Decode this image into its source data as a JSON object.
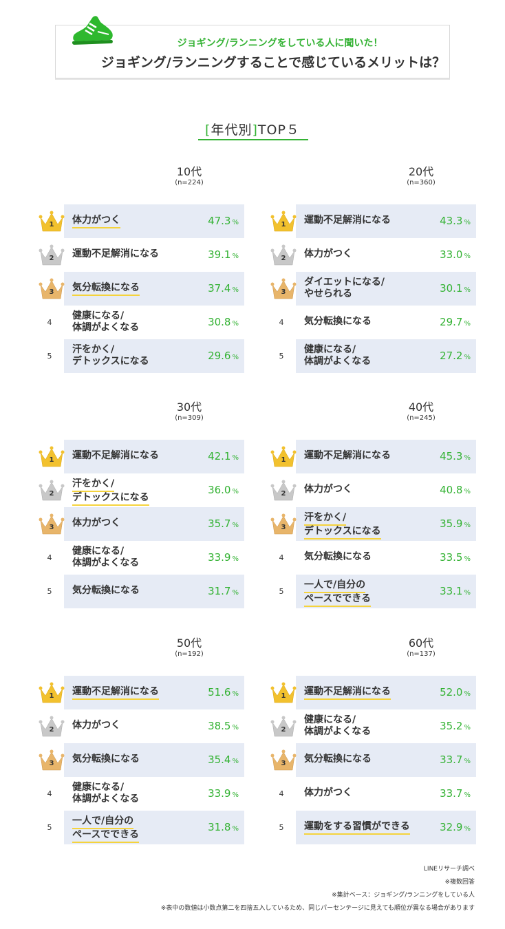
{
  "header": {
    "subtitle": "ジョギング/ランニングをしている人に聞いた！",
    "title": "ジョギング/ランニングすることで感じているメリットは？"
  },
  "section": {
    "bracket_open": "[",
    "title_main": "年代別",
    "bracket_close": "]",
    "title_suffix": "TOP５"
  },
  "chart_data": [
    {
      "type": "table",
      "title": "10代",
      "n": "(n=224)",
      "unit": "%",
      "ranks": [
        {
          "rank": 1,
          "label_lines": [
            "体力がつく"
          ],
          "value": "47.3",
          "underline": true
        },
        {
          "rank": 2,
          "label_lines": [
            "運動不足解消になる"
          ],
          "value": "39.1",
          "underline": false
        },
        {
          "rank": 3,
          "label_lines": [
            "気分転換になる"
          ],
          "value": "37.4",
          "underline": true
        },
        {
          "rank": 4,
          "label_lines": [
            "健康になる/",
            "体調がよくなる"
          ],
          "value": "30.8",
          "underline": false
        },
        {
          "rank": 5,
          "label_lines": [
            "汗をかく/",
            "デトックスになる"
          ],
          "value": "29.6",
          "underline": false
        }
      ]
    },
    {
      "type": "table",
      "title": "20代",
      "n": "(n=360)",
      "unit": "%",
      "ranks": [
        {
          "rank": 1,
          "label_lines": [
            "運動不足解消になる"
          ],
          "value": "43.3",
          "underline": false
        },
        {
          "rank": 2,
          "label_lines": [
            "体力がつく"
          ],
          "value": "33.0",
          "underline": false
        },
        {
          "rank": 3,
          "label_lines": [
            "ダイエットになる/",
            "やせられる"
          ],
          "value": "30.1",
          "underline": false
        },
        {
          "rank": 4,
          "label_lines": [
            "気分転換になる"
          ],
          "value": "29.7",
          "underline": false
        },
        {
          "rank": 5,
          "label_lines": [
            "健康になる/",
            "体調がよくなる"
          ],
          "value": "27.2",
          "underline": false
        }
      ]
    },
    {
      "type": "table",
      "title": "30代",
      "n": "(n=309)",
      "unit": "%",
      "ranks": [
        {
          "rank": 1,
          "label_lines": [
            "運動不足解消になる"
          ],
          "value": "42.1",
          "underline": false
        },
        {
          "rank": 2,
          "label_lines": [
            "汗をかく/",
            "デトックスになる"
          ],
          "value": "36.0",
          "underline": true
        },
        {
          "rank": 3,
          "label_lines": [
            "体力がつく"
          ],
          "value": "35.7",
          "underline": false
        },
        {
          "rank": 4,
          "label_lines": [
            "健康になる/",
            "体調がよくなる"
          ],
          "value": "33.9",
          "underline": false
        },
        {
          "rank": 5,
          "label_lines": [
            "気分転換になる"
          ],
          "value": "31.7",
          "underline": false
        }
      ]
    },
    {
      "type": "table",
      "title": "40代",
      "n": "(n=245)",
      "unit": "%",
      "ranks": [
        {
          "rank": 1,
          "label_lines": [
            "運動不足解消になる"
          ],
          "value": "45.3",
          "underline": false
        },
        {
          "rank": 2,
          "label_lines": [
            "体力がつく"
          ],
          "value": "40.8",
          "underline": false
        },
        {
          "rank": 3,
          "label_lines": [
            "汗をかく/",
            "デトックスになる"
          ],
          "value": "35.9",
          "underline": true
        },
        {
          "rank": 4,
          "label_lines": [
            "気分転換になる"
          ],
          "value": "33.5",
          "underline": false
        },
        {
          "rank": 5,
          "label_lines": [
            "一人で/自分の",
            "ペースでできる"
          ],
          "value": "33.1",
          "underline": true
        }
      ]
    },
    {
      "type": "table",
      "title": "50代",
      "n": "(n=192)",
      "unit": "%",
      "ranks": [
        {
          "rank": 1,
          "label_lines": [
            "運動不足解消になる"
          ],
          "value": "51.6",
          "underline": true
        },
        {
          "rank": 2,
          "label_lines": [
            "体力がつく"
          ],
          "value": "38.5",
          "underline": false
        },
        {
          "rank": 3,
          "label_lines": [
            "気分転換になる"
          ],
          "value": "35.4",
          "underline": false
        },
        {
          "rank": 4,
          "label_lines": [
            "健康になる/",
            "体調がよくなる"
          ],
          "value": "33.9",
          "underline": false
        },
        {
          "rank": 5,
          "label_lines": [
            "一人で/自分の",
            "ペースでできる"
          ],
          "value": "31.8",
          "underline": true
        }
      ]
    },
    {
      "type": "table",
      "title": "60代",
      "n": "(n=137)",
      "unit": "%",
      "ranks": [
        {
          "rank": 1,
          "label_lines": [
            "運動不足解消になる"
          ],
          "value": "52.0",
          "underline": true
        },
        {
          "rank": 2,
          "label_lines": [
            "健康になる/",
            "体調がよくなる"
          ],
          "value": "35.2",
          "underline": false
        },
        {
          "rank": 3,
          "label_lines": [
            "気分転換になる"
          ],
          "value": "33.7",
          "underline": false
        },
        {
          "rank": 4,
          "label_lines": [
            "体力がつく"
          ],
          "value": "33.7",
          "underline": false
        },
        {
          "rank": 5,
          "label_lines": [
            "運動をする習慣ができる"
          ],
          "value": "32.9",
          "underline": true
        }
      ]
    }
  ],
  "footnotes": [
    "LINEリサーチ調べ",
    "※複数回答",
    "※集計ベース：ジョギング/ランニングをしている人",
    "※表中の数値は小数点第二を四捨五入しているため、同じパーセンテージに見えても順位が異なる場合があります"
  ],
  "colors": {
    "accent_green": "#33b233",
    "row_bg": "#e6ebf5",
    "underline_yellow": "#f5d33c",
    "gold": "#f2c12e",
    "silver": "#c8c8c8",
    "bronze": "#e8b56a"
  },
  "icons": {
    "header": "running-shoe-icon",
    "rank1": "gold-crown-icon",
    "rank2": "silver-crown-icon",
    "rank3": "bronze-crown-icon"
  }
}
